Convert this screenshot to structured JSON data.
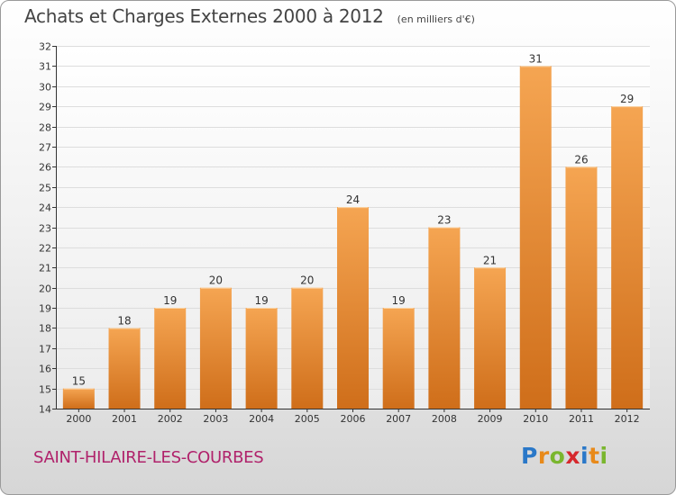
{
  "title": "Achats et Charges Externes 2000 à 2012",
  "subtitle": "(en milliers d'€)",
  "location": "SAINT-HILAIRE-LES-COURBES",
  "brand": {
    "letters": [
      "P",
      "r",
      "o",
      "x",
      "i",
      "t",
      "i"
    ],
    "colors": [
      "#2a78c8",
      "#e88a1a",
      "#7ab62e",
      "#d6282d",
      "#2a78c8",
      "#e88a1a",
      "#7ab62e"
    ]
  },
  "colors": {
    "bar_top": "#f5a552",
    "bar_bottom": "#cf6e1a",
    "axis": "#333333",
    "grid": "#dddddd"
  },
  "chart_data": {
    "type": "bar",
    "categories": [
      "2000",
      "2001",
      "2002",
      "2003",
      "2004",
      "2005",
      "2006",
      "2007",
      "2008",
      "2009",
      "2010",
      "2011",
      "2012"
    ],
    "values": [
      15,
      18,
      19,
      20,
      19,
      20,
      24,
      19,
      23,
      21,
      31,
      26,
      29
    ],
    "title": "Achats et Charges Externes 2000 à 2012",
    "xlabel": "",
    "ylabel": "",
    "ylim": [
      14,
      32
    ],
    "yticks": [
      14,
      15,
      16,
      17,
      18,
      19,
      20,
      21,
      22,
      23,
      24,
      25,
      26,
      27,
      28,
      29,
      30,
      31,
      32
    ],
    "grid": true,
    "data_labels": true
  }
}
